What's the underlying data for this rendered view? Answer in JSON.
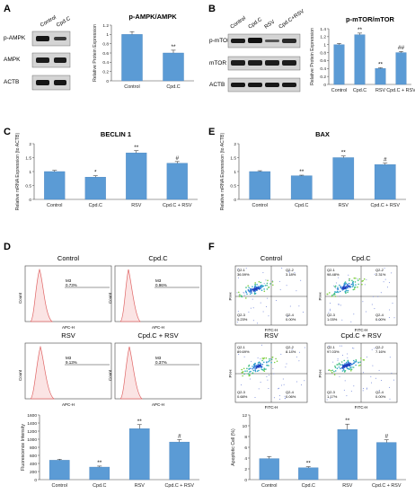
{
  "panels": {
    "A": {
      "letter": "A",
      "blot_labels": [
        "p-AMPK",
        "AMPK",
        "ACTB"
      ],
      "lane_labels": [
        "Control",
        "Cpd.C"
      ]
    },
    "B": {
      "letter": "B",
      "blot_labels": [
        "p-mTOR",
        "mTOR",
        "ACTB"
      ],
      "lane_labels": [
        "Control",
        "Cpd.C",
        "RSV",
        "Cpd.C+RSV"
      ]
    },
    "C": {
      "letter": "C"
    },
    "D": {
      "letter": "D",
      "hist_titles": [
        "Control",
        "Cpd.C",
        "RSV",
        "Cpd.C + RSV"
      ],
      "gate_label": "M3",
      "gate_values": [
        "0.73%",
        "0.96%",
        "9.13%",
        "0.37%"
      ],
      "x_axis": "APC-H",
      "y_axis": "Count"
    },
    "E": {
      "letter": "E"
    },
    "F": {
      "letter": "F",
      "scatter_titles": [
        "Control",
        "Cpd.C",
        "RSV",
        "Cpd.C + RSV"
      ],
      "x_axis": "FITC-H",
      "y_axis": "PI-H",
      "quadrants": [
        [
          "Q2-1",
          "Q2-2",
          "Q2-3",
          "Q2-4"
        ]
      ],
      "quadrant_values": [
        [
          "36.59%",
          "3.18%",
          "0.23%",
          "0.00%"
        ],
        [
          "98.48%",
          "2.31%",
          "1.03%",
          "0.00%"
        ],
        [
          "89.69%",
          "8.14%",
          "0.68%",
          "0.06%"
        ],
        [
          "97.03%",
          "7.16%",
          "1.17%",
          "0.00%"
        ]
      ]
    }
  },
  "chart_data": [
    {
      "id": "A-bar",
      "type": "bar",
      "title": "p-AMPK/AMPK",
      "ylabel": "Relative Protein Expression",
      "categories": [
        "Control",
        "Cpd.C"
      ],
      "values": [
        1.0,
        0.6
      ],
      "errors": [
        0.06,
        0.06
      ],
      "marks": [
        "",
        "**"
      ],
      "ylim": [
        0,
        1.2
      ],
      "yticks": [
        "0",
        "0.2",
        "0.4",
        "0.6",
        "0.8",
        "1",
        "1.2"
      ]
    },
    {
      "id": "B-bar",
      "type": "bar",
      "title": "p-mTOR/mTOR",
      "ylabel": "Relative Protein Expression",
      "categories": [
        "Control",
        "Cpd.C",
        "RSV",
        "Cpd.C + RSV"
      ],
      "values": [
        1.0,
        1.25,
        0.4,
        0.8
      ],
      "errors": [
        0.03,
        0.04,
        0.02,
        0.03
      ],
      "marks": [
        "",
        "**",
        "**",
        "##"
      ],
      "ylim": [
        0,
        1.4
      ],
      "yticks": [
        "0",
        "0.2",
        "0.4",
        "0.6",
        "0.8",
        "1",
        "1.2",
        "1.4"
      ]
    },
    {
      "id": "C-bar",
      "type": "bar",
      "title": "BECLIN 1",
      "ylabel": "Relative mRNA Expression (to ACTB)",
      "categories": [
        "Control",
        "Cpd.C",
        "RSV",
        "Cpd.C + RSV"
      ],
      "values": [
        1.0,
        0.8,
        1.67,
        1.3
      ],
      "errors": [
        0.04,
        0.05,
        0.08,
        0.06
      ],
      "marks": [
        "",
        "*",
        "**",
        "#"
      ],
      "ylim": [
        0,
        2
      ],
      "yticks": [
        "0",
        "0.5",
        "1",
        "1.5",
        "2"
      ]
    },
    {
      "id": "E-bar",
      "type": "bar",
      "title": "BAX",
      "ylabel": "Relative mRNA Expression (to ACTB)",
      "categories": [
        "Control",
        "Cpd.C",
        "RSV",
        "Cpd.C + RSV"
      ],
      "values": [
        1.0,
        0.85,
        1.5,
        1.25
      ],
      "errors": [
        0.03,
        0.02,
        0.06,
        0.05
      ],
      "marks": [
        "",
        "**",
        "**",
        "#"
      ],
      "ylim": [
        0,
        2
      ],
      "yticks": [
        "0",
        "0.5",
        "1",
        "1.5",
        "2"
      ]
    },
    {
      "id": "D-bar",
      "type": "bar",
      "title": "",
      "ylabel": "Fluorescence Intensity",
      "categories": [
        "Control",
        "Cpd.C",
        "RSV",
        "Cpd.C + RSV"
      ],
      "values": [
        480,
        310,
        1260,
        930
      ],
      "errors": [
        25,
        25,
        100,
        60
      ],
      "marks": [
        "",
        "**",
        "**",
        "#"
      ],
      "ylim": [
        0,
        1600
      ],
      "yticks": [
        "0",
        "200",
        "400",
        "600",
        "800",
        "1000",
        "1200",
        "1400",
        "1600"
      ]
    },
    {
      "id": "F-bar",
      "type": "bar",
      "title": "",
      "ylabel": "Apoptotic Cell (%)",
      "categories": [
        "Control",
        "Cpd.C",
        "RSV",
        "Cpd.C + RSV"
      ],
      "values": [
        3.9,
        2.2,
        9.3,
        6.9
      ],
      "errors": [
        0.4,
        0.2,
        1.0,
        0.5
      ],
      "marks": [
        "",
        "**",
        "**",
        "#"
      ],
      "ylim": [
        0,
        12
      ],
      "yticks": [
        "0",
        "2",
        "4",
        "6",
        "8",
        "10",
        "12"
      ]
    }
  ],
  "colors": {
    "bar": "#5b9bd5",
    "bar_edge": "#4a86bf",
    "hist_fill": "#fbe4e4",
    "hist_line": "#e06666",
    "blot_bg": "#d4d4d4",
    "band": "#222222"
  }
}
